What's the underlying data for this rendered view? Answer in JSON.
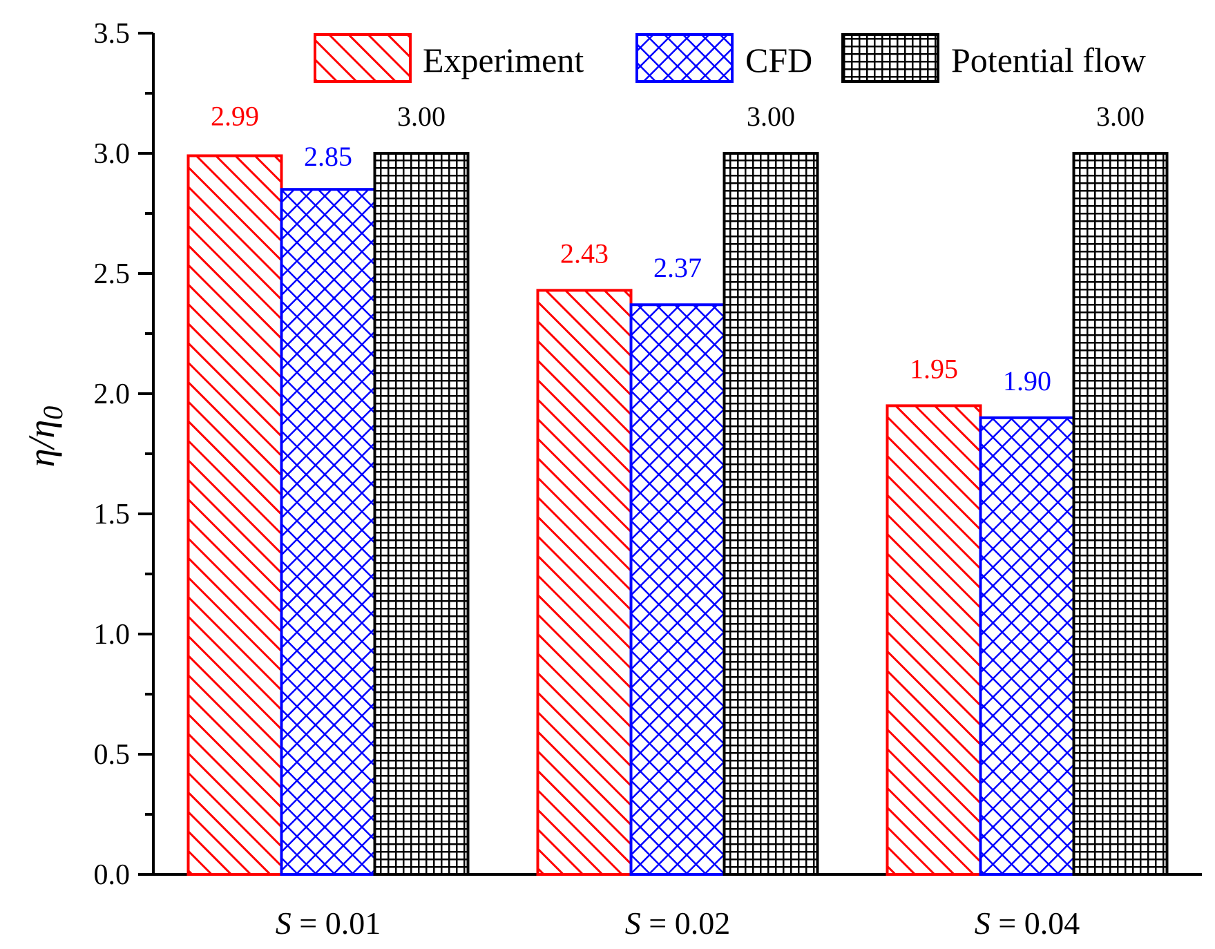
{
  "chart_data": {
    "type": "bar",
    "categories": [
      {
        "var": "S",
        "eq": " = ",
        "val": "0.01"
      },
      {
        "var": "S",
        "eq": " = ",
        "val": "0.02"
      },
      {
        "var": "S",
        "eq": " = ",
        "val": "0.04"
      }
    ],
    "series": [
      {
        "name": "Experiment",
        "color": "#ff0000",
        "pattern": "diagonal-hatch",
        "values": [
          2.99,
          2.43,
          1.95
        ],
        "labels": [
          "2.99",
          "2.43",
          "1.95"
        ]
      },
      {
        "name": "CFD",
        "color": "#0000ff",
        "pattern": "cross-hatch",
        "values": [
          2.85,
          2.37,
          1.9
        ],
        "labels": [
          "2.85",
          "2.37",
          "1.90"
        ]
      },
      {
        "name": "Potential flow",
        "color": "#000000",
        "pattern": "grid",
        "values": [
          3.0,
          3.0,
          3.0
        ],
        "labels": [
          "3.00",
          "3.00",
          "3.00"
        ]
      }
    ],
    "ylabel": {
      "main": "η/η",
      "sub": "0"
    },
    "xlabel": "",
    "ylim": [
      0,
      3.5
    ],
    "yticks": [
      "0.0",
      "0.5",
      "1.0",
      "1.5",
      "2.0",
      "2.5",
      "3.0",
      "3.5"
    ],
    "legend_position": "top-right",
    "grid": false
  }
}
